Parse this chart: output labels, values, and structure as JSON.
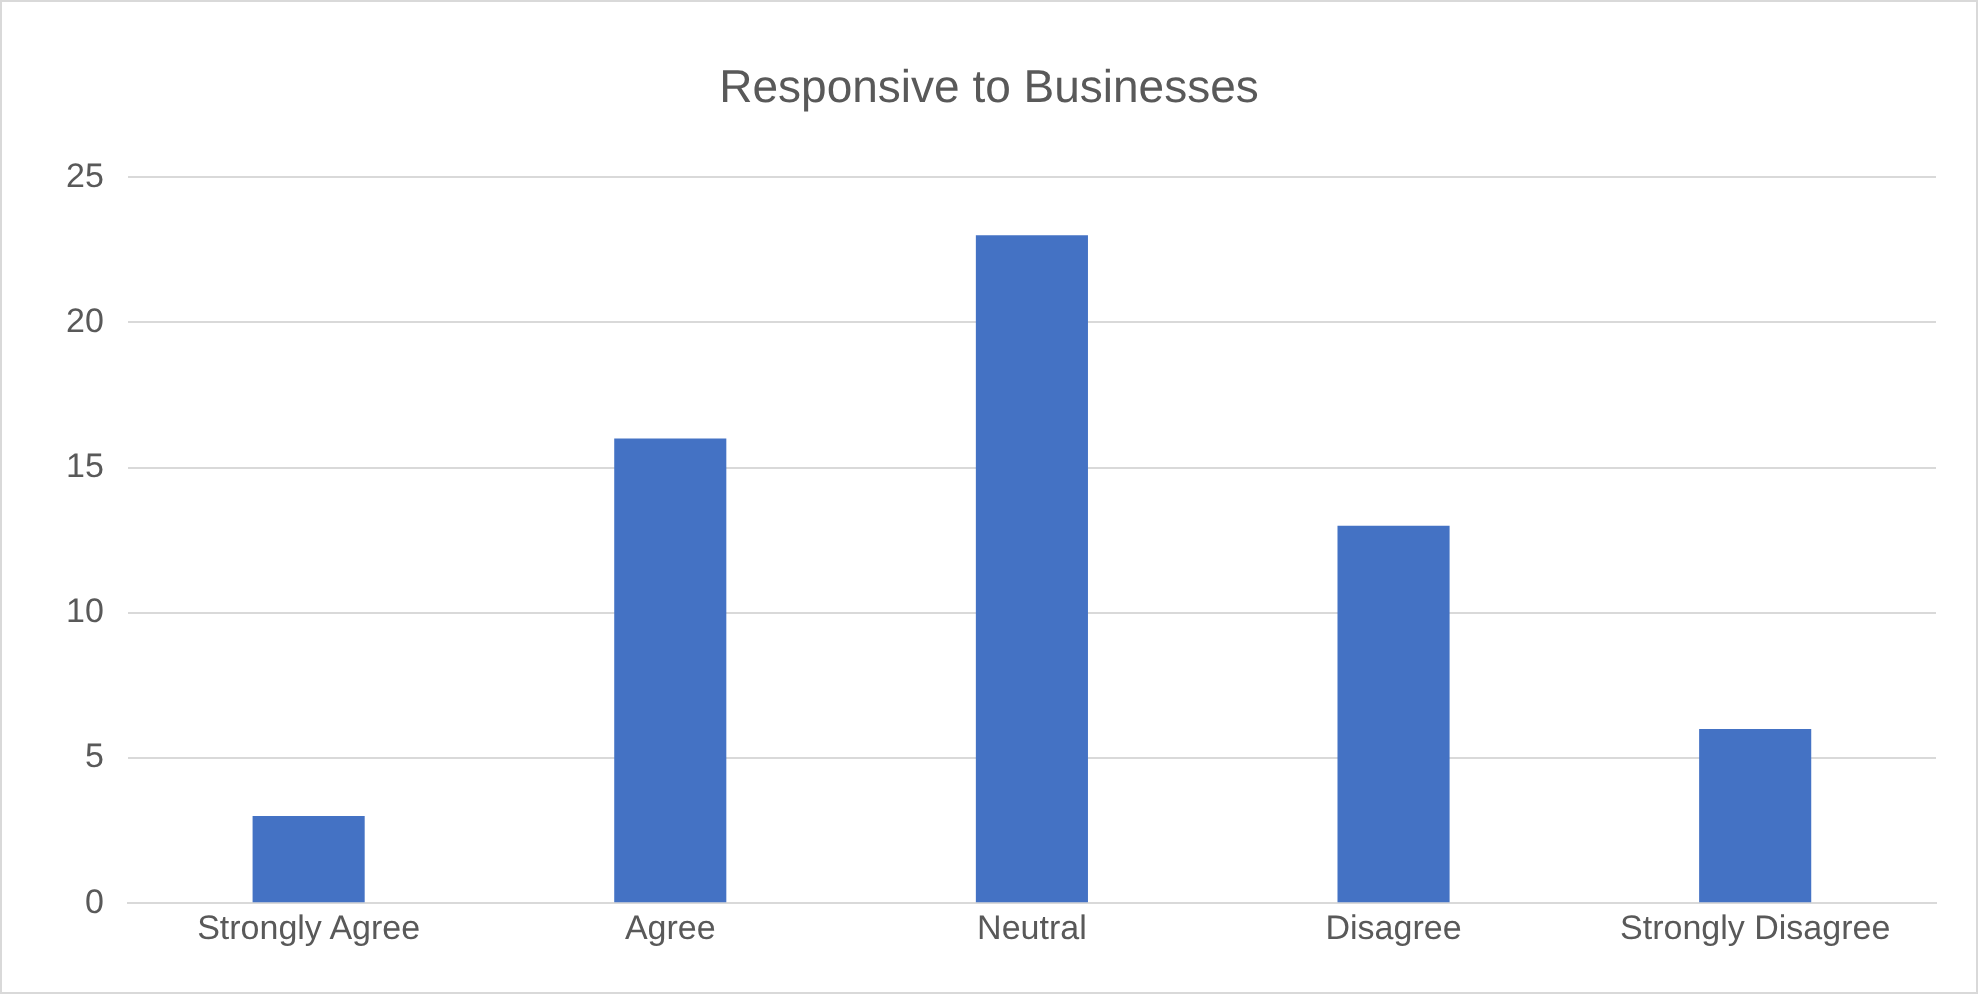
{
  "chart_data": {
    "type": "bar",
    "title": "Responsive to Businesses",
    "categories": [
      "Strongly Agree",
      "Agree",
      "Neutral",
      "Disagree",
      "Strongly Disagree"
    ],
    "values": [
      3,
      16,
      23,
      13,
      6
    ],
    "color": "#4472c4",
    "ylim": [
      0,
      25
    ],
    "yticks": [
      0,
      5,
      10,
      15,
      20,
      25
    ],
    "grid": "y",
    "legend": false
  }
}
